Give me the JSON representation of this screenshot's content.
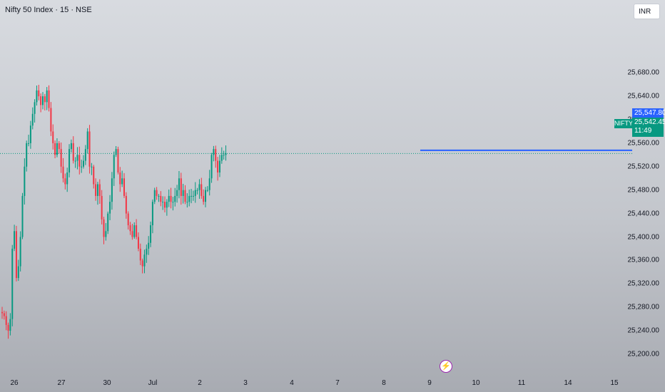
{
  "header": {
    "title": "Nifty 50 Index · 15 · NSE",
    "currency_button": "INR"
  },
  "price_tags": {
    "line_price": "25,547.80",
    "symbol": "NIFTY",
    "last_price": "25,542.45",
    "countdown": "11:49"
  },
  "events": {
    "icon": "lightning-icon",
    "glyph": "⚡"
  },
  "colors": {
    "up": "#089981",
    "down": "#f23645",
    "level_line": "#2962ff"
  },
  "chart_data": {
    "type": "candlestick",
    "title": "Nifty 50 Index · 15 · NSE",
    "ylim": [
      25180,
      25710
    ],
    "y_ticks": [
      "25,200.00",
      "25,240.00",
      "25,280.00",
      "25,320.00",
      "25,360.00",
      "25,400.00",
      "25,440.00",
      "25,480.00",
      "25,520.00",
      "25,560.00",
      "25,600.00",
      "25,640.00",
      "25,680.00"
    ],
    "x_ticks": [
      "26",
      "27",
      "30",
      "Jul",
      "2",
      "3",
      "4",
      "7",
      "8",
      "9",
      "10",
      "11",
      "14",
      "15"
    ],
    "horizontal_line": 25547.8,
    "last_price": 25542.45,
    "grid": false,
    "price_path": [
      25270,
      25265,
      25250,
      25240,
      25260,
      25380,
      25410,
      25330,
      25350,
      25400,
      25470,
      25520,
      25560,
      25560,
      25590,
      25610,
      25630,
      25650,
      25640,
      25625,
      25640,
      25630,
      25650,
      25620,
      25580,
      25560,
      25540,
      25560,
      25550,
      25520,
      25500,
      25490,
      25510,
      25550,
      25560,
      25530,
      25530,
      25540,
      25520,
      25520,
      25530,
      25550,
      25580,
      25520,
      25520,
      25490,
      25470,
      25490,
      25470,
      25430,
      25400,
      25410,
      25440,
      25460,
      25500,
      25540,
      25550,
      25510,
      25490,
      25500,
      25470,
      25440,
      25420,
      25410,
      25400,
      25420,
      25400,
      25380,
      25360,
      25350,
      25370,
      25380,
      25390,
      25420,
      25460,
      25480,
      25470,
      25470,
      25460,
      25460,
      25450,
      25460,
      25470,
      25460,
      25460,
      25470,
      25480,
      25500,
      25470,
      25480,
      25460,
      25460,
      25470,
      25470,
      25470,
      25480,
      25480,
      25490,
      25470,
      25460,
      25480,
      25480,
      25500,
      25540,
      25550,
      25530,
      25510,
      25530,
      25540,
      25540,
      25542.45
    ]
  }
}
